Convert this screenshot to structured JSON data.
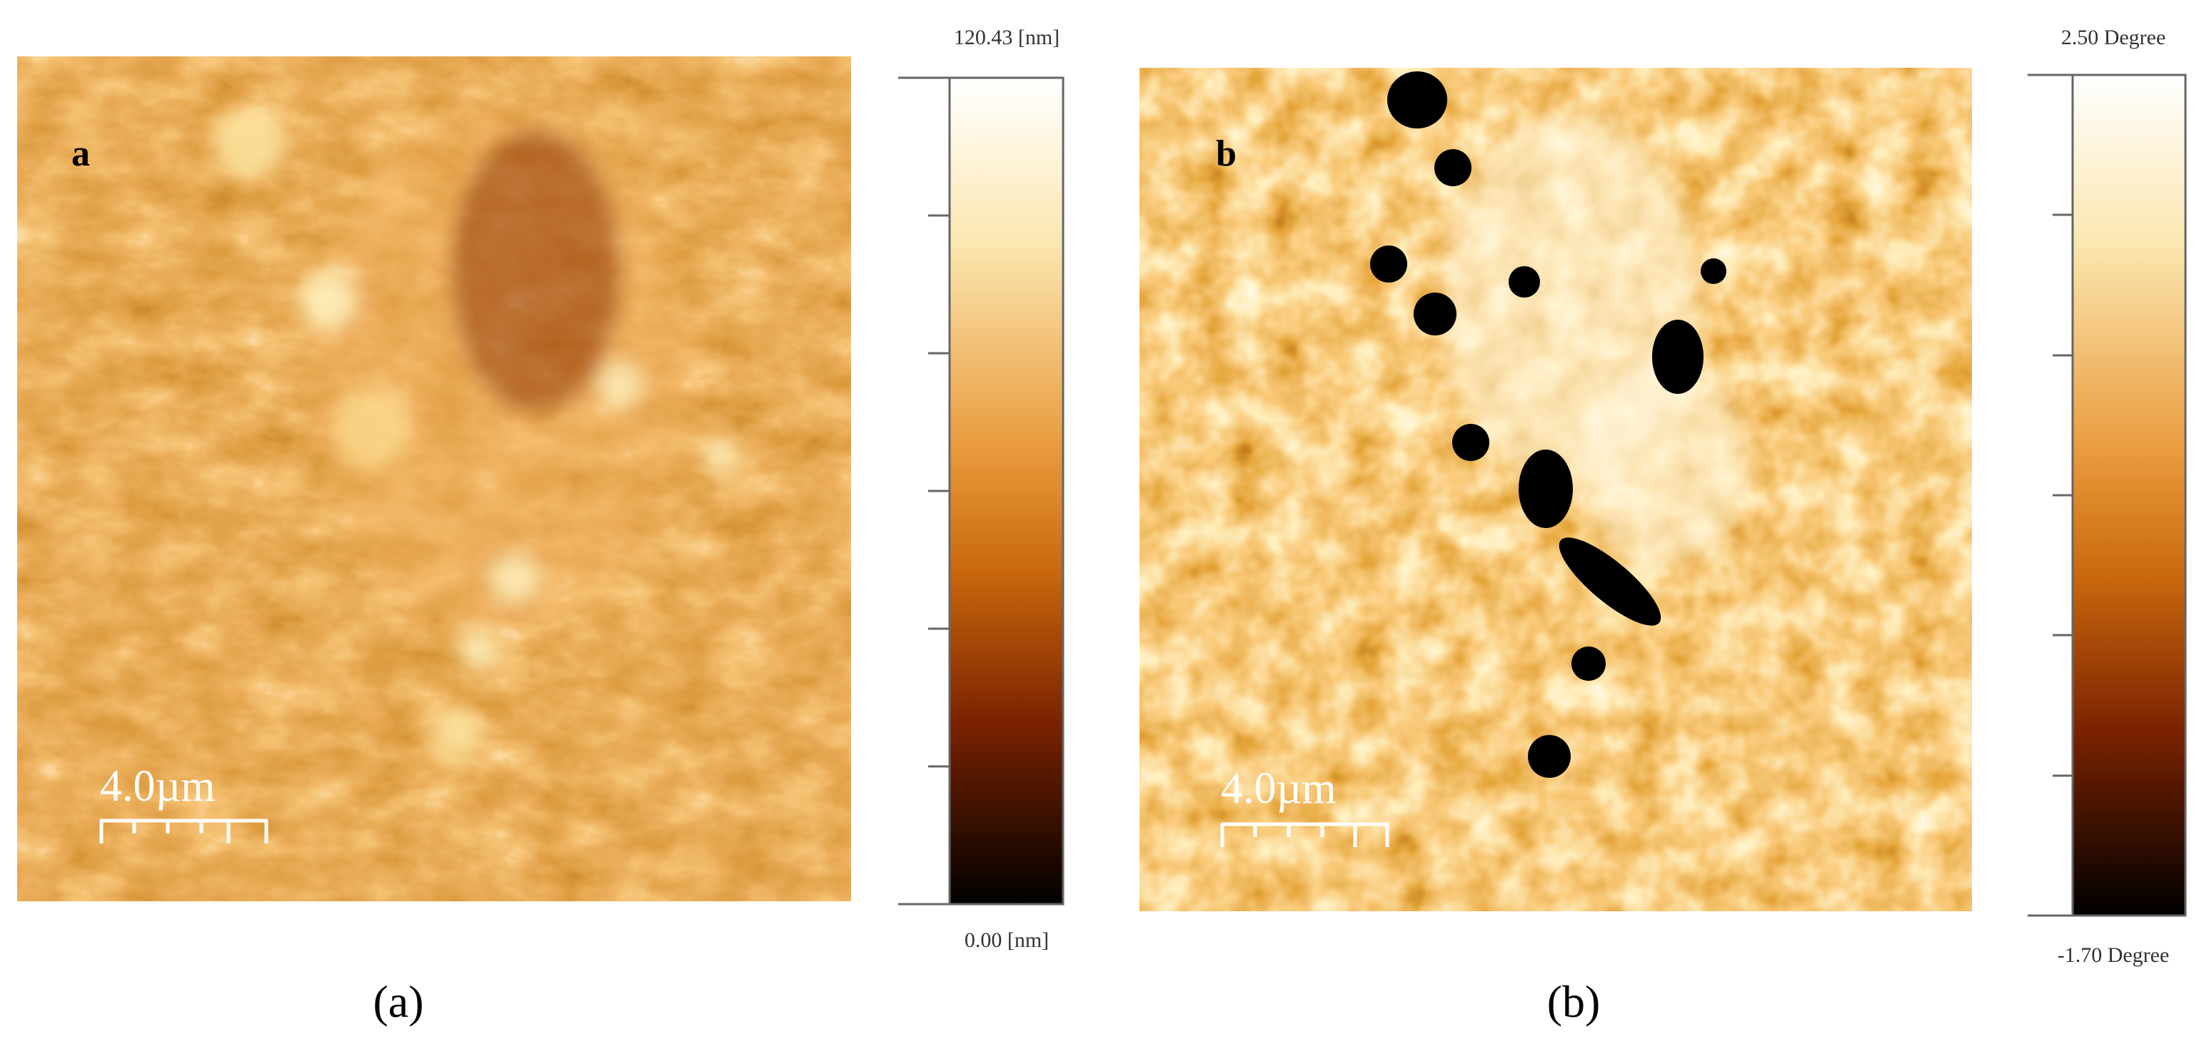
{
  "panels": [
    {
      "letter": "a",
      "scale_bar": "4.0µm",
      "colorbar": {
        "max_label": "120.43 [nm]",
        "min_label": "0.00 [nm]"
      },
      "caption": "(a)"
    },
    {
      "letter": "b",
      "scale_bar": "4.0µm",
      "colorbar": {
        "max_label": "2.50 Degree",
        "min_label": "-1.70 Degree"
      },
      "caption": "(b)"
    }
  ]
}
